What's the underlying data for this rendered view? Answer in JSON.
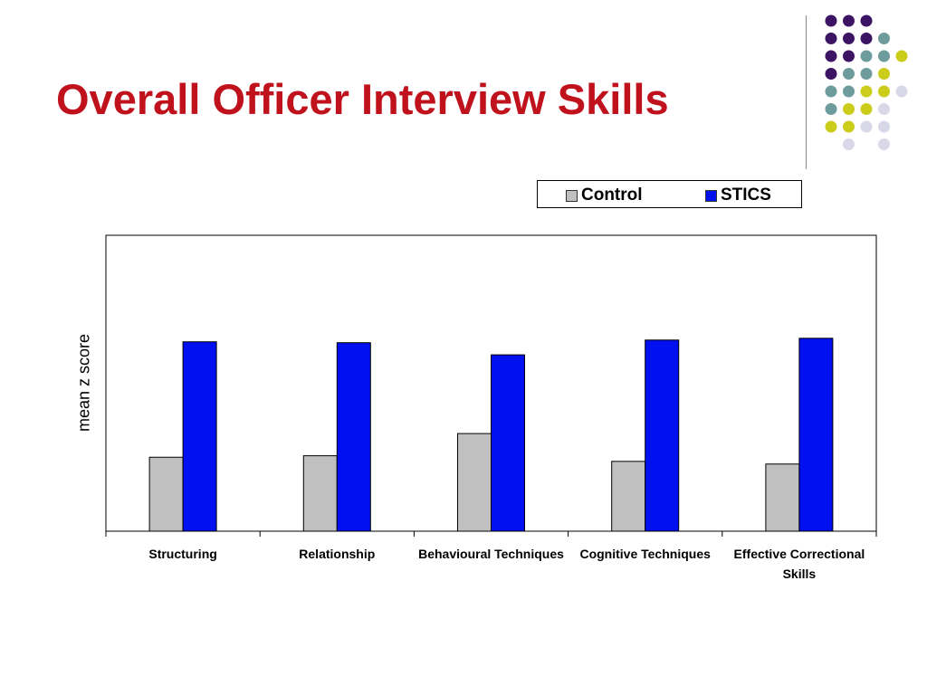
{
  "title": "Overall Officer Interview Skills",
  "colors": {
    "title": "#c0121c",
    "dots": [
      "#3d1463",
      "#6e9c9c",
      "#cccc1a",
      "#d8d8e8"
    ]
  },
  "chart_data": {
    "type": "bar",
    "title": "",
    "xlabel": "",
    "ylabel": "mean z score",
    "categories": [
      "Structuring",
      "Relationship",
      "Behavioural Techniques",
      "Cognitive Techniques",
      "Effective Correctional Skills"
    ],
    "series": [
      {
        "name": "Control",
        "color": "#c0c0c0",
        "values": [
          0.25,
          0.255,
          0.33,
          0.236,
          0.227
        ]
      },
      {
        "name": "STICS",
        "color": "#0010f0",
        "values": [
          0.64,
          0.637,
          0.596,
          0.646,
          0.652
        ]
      }
    ],
    "ylim": [
      0,
      1
    ],
    "grid": false,
    "legend": "top-right"
  }
}
